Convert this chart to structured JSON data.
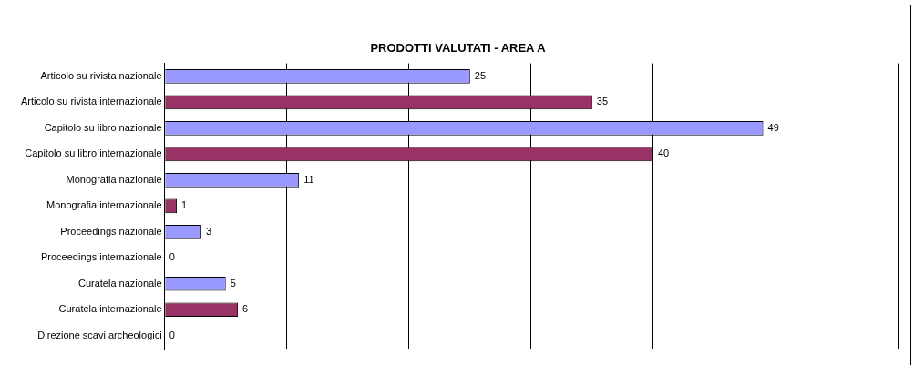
{
  "chart_data": {
    "type": "bar",
    "orientation": "horizontal",
    "title": "PRODOTTI VALUTATI - AREA A",
    "categories": [
      "Articolo su rivista nazionale",
      "Articolo su rivista internazionale",
      "Capitolo su libro nazionale",
      "Capitolo su libro internazionale",
      "Monografia nazionale",
      "Monografia internazionale",
      "Proceedings nazionale",
      "Proceedings internazionale",
      "Curatela nazionale",
      "Curatela internazionale",
      "Direzione scavi archeologici"
    ],
    "values": [
      25,
      35,
      49,
      40,
      11,
      1,
      3,
      0,
      5,
      6,
      0
    ],
    "colors": [
      "#9999ff",
      "#993366",
      "#9999ff",
      "#993366",
      "#9999ff",
      "#993366",
      "#9999ff",
      "#993366",
      "#9999ff",
      "#993366",
      "#9999ff"
    ],
    "xlim": [
      0,
      60
    ],
    "xticks": [
      {
        "value": 0,
        "label": null
      },
      {
        "value": 10,
        "label": null
      },
      {
        "value": 20,
        "label": null
      },
      {
        "value": 30,
        "label": null
      },
      {
        "value": 40,
        "label": null
      },
      {
        "value": 50,
        "label": null
      },
      {
        "value": 60,
        "label": null
      }
    ],
    "tick_labels": "y",
    "grid": "x",
    "data_labels": true,
    "legend": false
  }
}
